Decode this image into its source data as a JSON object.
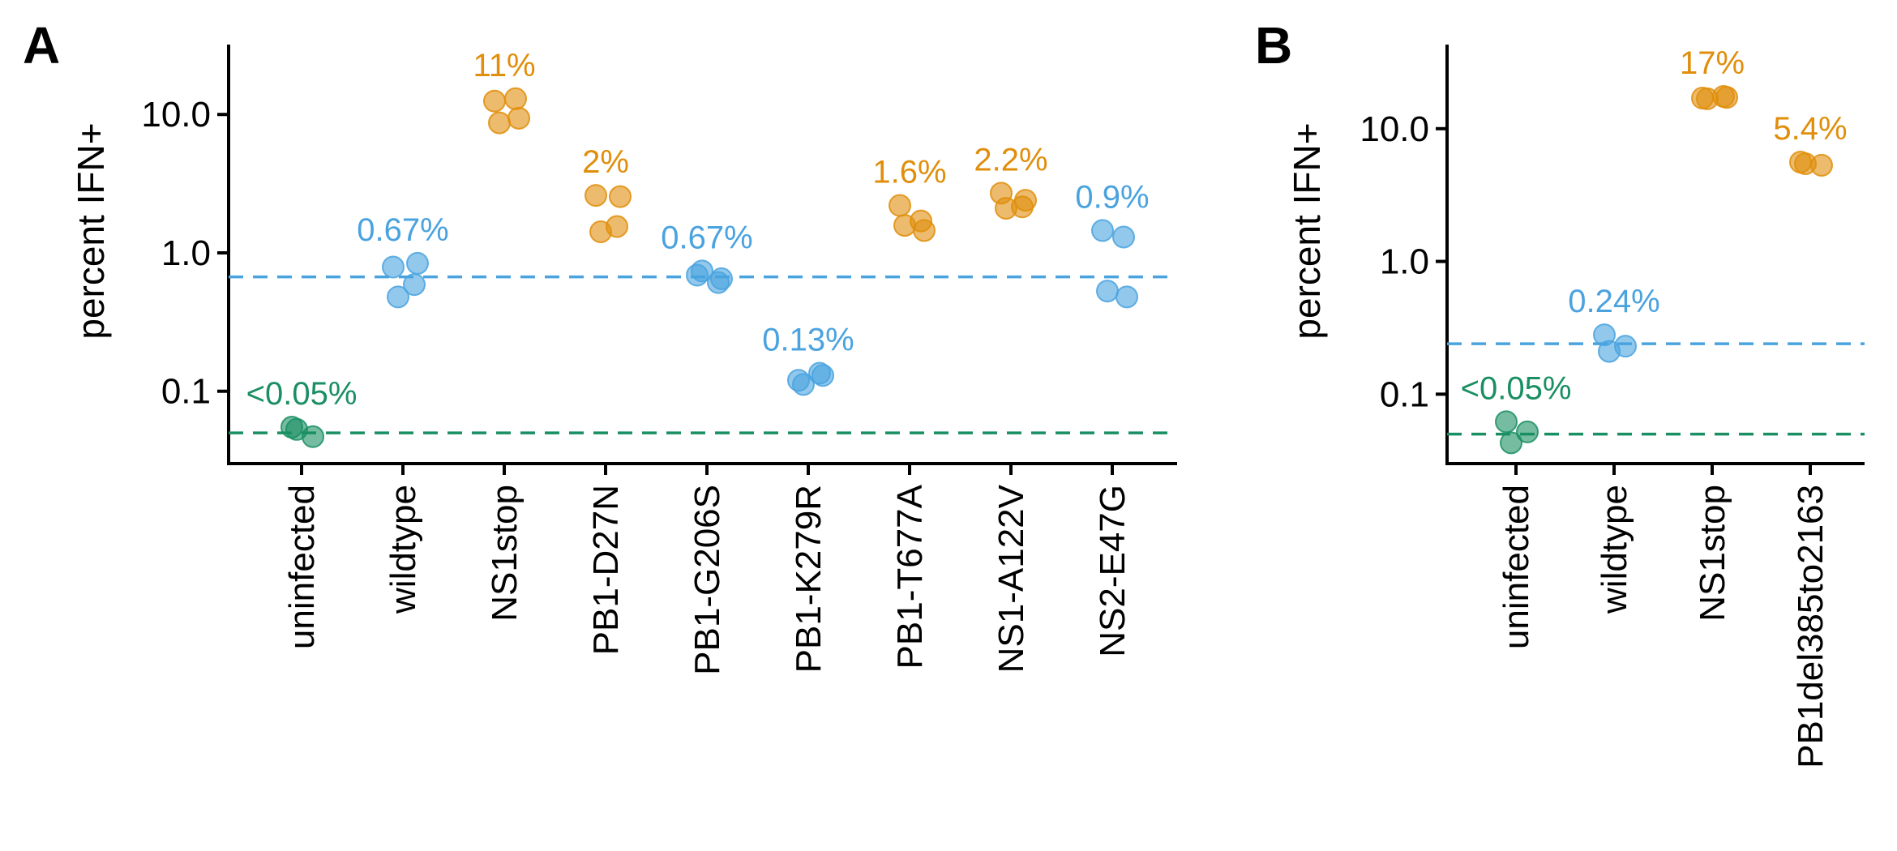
{
  "panels": {
    "a": {
      "label": "A"
    },
    "b": {
      "label": "B"
    }
  },
  "colors": {
    "green": "#1a8f63",
    "blue": "#4aa3df",
    "orange": "#e08e0b",
    "axis": "#000000"
  },
  "chart_data": [
    {
      "type": "scatter",
      "panel": "A",
      "ylabel": "percent IFN+",
      "yscale": "log",
      "ylim": [
        0.03,
        32
      ],
      "yticks": [
        {
          "value": 0.1,
          "label": "0.1"
        },
        {
          "value": 1.0,
          "label": "1.0"
        },
        {
          "value": 10.0,
          "label": "10.0"
        }
      ],
      "grid": false,
      "categories": [
        {
          "name": "uninfected",
          "color": "green",
          "annotation": "<0.05%",
          "points": [
            0.055,
            0.047,
            0.053
          ]
        },
        {
          "name": "wildtype",
          "color": "blue",
          "annotation": "0.67%",
          "points": [
            0.79,
            0.59,
            0.48,
            0.84
          ]
        },
        {
          "name": "NS1stop",
          "color": "orange",
          "annotation": "11%",
          "points": [
            12.5,
            13.0,
            8.7,
            9.4
          ]
        },
        {
          "name": "PB1-D27N",
          "color": "orange",
          "annotation": "2%",
          "points": [
            2.6,
            1.55,
            1.42,
            2.55
          ]
        },
        {
          "name": "PB1-G206S",
          "color": "blue",
          "annotation": "0.67%",
          "points": [
            0.69,
            0.61,
            0.74,
            0.65
          ]
        },
        {
          "name": "PB1-K279R",
          "color": "blue",
          "annotation": "0.13%",
          "points": [
            0.12,
            0.135,
            0.112,
            0.13
          ]
        },
        {
          "name": "PB1-T677A",
          "color": "orange",
          "annotation": "1.6%",
          "points": [
            2.2,
            1.7,
            1.58,
            1.45
          ]
        },
        {
          "name": "NS1-A122V",
          "color": "orange",
          "annotation": "2.2%",
          "points": [
            2.7,
            2.15,
            2.1,
            2.4
          ]
        },
        {
          "name": "NS2-E47G",
          "color": "blue",
          "annotation": "0.9%",
          "points": [
            1.45,
            1.3,
            0.53,
            0.48
          ]
        }
      ],
      "reference_lines": [
        {
          "value": 0.67,
          "color": "blue",
          "style": "dashed"
        },
        {
          "value": 0.05,
          "color": "green",
          "style": "dashed"
        }
      ]
    },
    {
      "type": "scatter",
      "panel": "B",
      "ylabel": "percent IFN+",
      "yscale": "log",
      "ylim": [
        0.03,
        43
      ],
      "yticks": [
        {
          "value": 0.1,
          "label": "0.1"
        },
        {
          "value": 1.0,
          "label": "1.0"
        },
        {
          "value": 10.0,
          "label": "10.0"
        }
      ],
      "grid": false,
      "categories": [
        {
          "name": "uninfected",
          "color": "green",
          "annotation": "<0.05%",
          "points": [
            0.062,
            0.052,
            0.043
          ]
        },
        {
          "name": "wildtype",
          "color": "blue",
          "annotation": "0.24%",
          "points": [
            0.28,
            0.23,
            0.21
          ]
        },
        {
          "name": "NS1stop",
          "color": "orange",
          "annotation": "17%",
          "points": [
            17.0,
            17.5,
            16.8,
            17.2
          ]
        },
        {
          "name": "PB1del385to2163",
          "color": "orange",
          "annotation": "5.4%",
          "points": [
            5.6,
            5.3,
            5.45
          ]
        }
      ],
      "reference_lines": [
        {
          "value": 0.24,
          "color": "blue",
          "style": "dashed"
        },
        {
          "value": 0.05,
          "color": "green",
          "style": "dashed"
        }
      ]
    }
  ]
}
